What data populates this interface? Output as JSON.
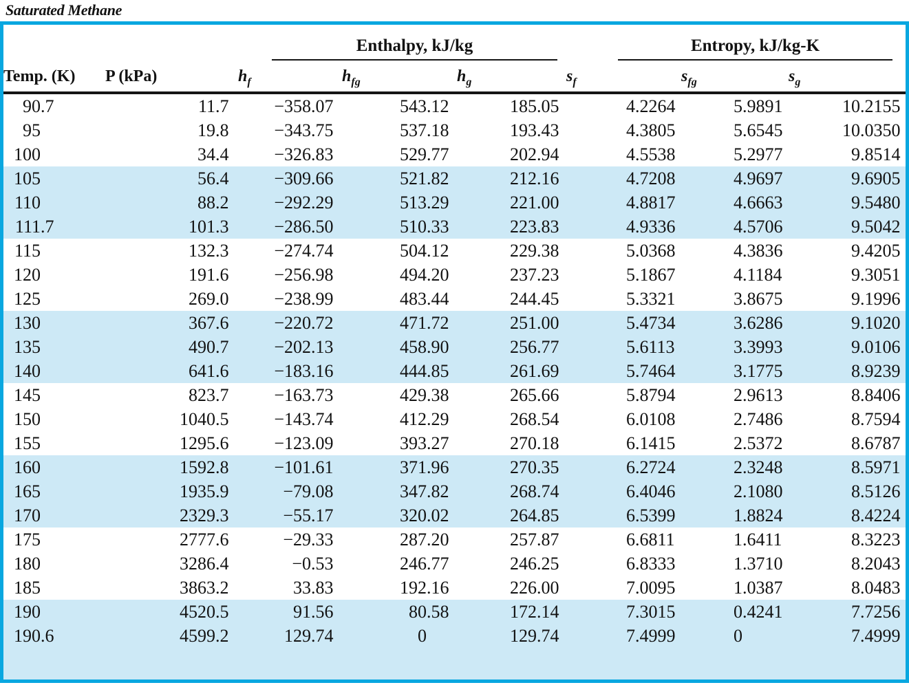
{
  "title": "Saturated Methane",
  "colors": {
    "table_border": "#09A7E0",
    "highlight_band": "#CDE9F6",
    "header_line": "#151515",
    "text": "#121212"
  },
  "table": {
    "group_headers": [
      {
        "id": "enthalpy",
        "label": "Enthalpy, kJ/kg",
        "span": 3
      },
      {
        "id": "entropy",
        "label": "Entropy, kJ/kg-K",
        "span": 3
      }
    ],
    "columns": [
      {
        "id": "temp",
        "label": "Temp. (K)"
      },
      {
        "id": "p",
        "label": "P (kPa)"
      },
      {
        "id": "hf",
        "main": "h",
        "sub": "f"
      },
      {
        "id": "hfg",
        "main": "h",
        "sub": "fg"
      },
      {
        "id": "hg",
        "main": "h",
        "sub": "g"
      },
      {
        "id": "sf",
        "main": "s",
        "sub": "f"
      },
      {
        "id": "sfg",
        "main": "s",
        "sub": "fg"
      },
      {
        "id": "sg",
        "main": "s",
        "sub": "g"
      }
    ],
    "rows": [
      {
        "highlighted": false,
        "values": [
          "90.7",
          "11.7",
          "−358.07",
          "543.12",
          "185.05",
          "4.2264",
          "5.9891",
          "10.2155"
        ]
      },
      {
        "highlighted": false,
        "values": [
          "95",
          "19.8",
          "−343.75",
          "537.18",
          "193.43",
          "4.3805",
          "5.6545",
          "10.0350"
        ]
      },
      {
        "highlighted": false,
        "values": [
          "100",
          "34.4",
          "−326.83",
          "529.77",
          "202.94",
          "4.5538",
          "5.2977",
          "9.8514"
        ]
      },
      {
        "highlighted": true,
        "values": [
          "105",
          "56.4",
          "−309.66",
          "521.82",
          "212.16",
          "4.7208",
          "4.9697",
          "9.6905"
        ]
      },
      {
        "highlighted": true,
        "values": [
          "110",
          "88.2",
          "−292.29",
          "513.29",
          "221.00",
          "4.8817",
          "4.6663",
          "9.5480"
        ]
      },
      {
        "highlighted": true,
        "values": [
          "111.7",
          "101.3",
          "−286.50",
          "510.33",
          "223.83",
          "4.9336",
          "4.5706",
          "9.5042"
        ]
      },
      {
        "highlighted": false,
        "values": [
          "115",
          "132.3",
          "−274.74",
          "504.12",
          "229.38",
          "5.0368",
          "4.3836",
          "9.4205"
        ]
      },
      {
        "highlighted": false,
        "values": [
          "120",
          "191.6",
          "−256.98",
          "494.20",
          "237.23",
          "5.1867",
          "4.1184",
          "9.3051"
        ]
      },
      {
        "highlighted": false,
        "values": [
          "125",
          "269.0",
          "−238.99",
          "483.44",
          "244.45",
          "5.3321",
          "3.8675",
          "9.1996"
        ]
      },
      {
        "highlighted": true,
        "values": [
          "130",
          "367.6",
          "−220.72",
          "471.72",
          "251.00",
          "5.4734",
          "3.6286",
          "9.1020"
        ]
      },
      {
        "highlighted": true,
        "values": [
          "135",
          "490.7",
          "−202.13",
          "458.90",
          "256.77",
          "5.6113",
          "3.3993",
          "9.0106"
        ]
      },
      {
        "highlighted": true,
        "values": [
          "140",
          "641.6",
          "−183.16",
          "444.85",
          "261.69",
          "5.7464",
          "3.1775",
          "8.9239"
        ]
      },
      {
        "highlighted": false,
        "values": [
          "145",
          "823.7",
          "−163.73",
          "429.38",
          "265.66",
          "5.8794",
          "2.9613",
          "8.8406"
        ]
      },
      {
        "highlighted": false,
        "values": [
          "150",
          "1040.5",
          "−143.74",
          "412.29",
          "268.54",
          "6.0108",
          "2.7486",
          "8.7594"
        ]
      },
      {
        "highlighted": false,
        "values": [
          "155",
          "1295.6",
          "−123.09",
          "393.27",
          "270.18",
          "6.1415",
          "2.5372",
          "8.6787"
        ]
      },
      {
        "highlighted": true,
        "values": [
          "160",
          "1592.8",
          "−101.61",
          "371.96",
          "270.35",
          "6.2724",
          "2.3248",
          "8.5971"
        ]
      },
      {
        "highlighted": true,
        "values": [
          "165",
          "1935.9",
          "−79.08",
          "347.82",
          "268.74",
          "6.4046",
          "2.1080",
          "8.5126"
        ]
      },
      {
        "highlighted": true,
        "values": [
          "170",
          "2329.3",
          "−55.17",
          "320.02",
          "264.85",
          "6.5399",
          "1.8824",
          "8.4224"
        ]
      },
      {
        "highlighted": false,
        "values": [
          "175",
          "2777.6",
          "−29.33",
          "287.20",
          "257.87",
          "6.6811",
          "1.6411",
          "8.3223"
        ]
      },
      {
        "highlighted": false,
        "values": [
          "180",
          "3286.4",
          "−0.53",
          "246.77",
          "246.25",
          "6.8333",
          "1.3710",
          "8.2043"
        ]
      },
      {
        "highlighted": false,
        "values": [
          "185",
          "3863.2",
          "33.83",
          "192.16",
          "226.00",
          "7.0095",
          "1.0387",
          "8.0483"
        ]
      },
      {
        "highlighted": true,
        "values": [
          "190",
          "4520.5",
          "91.56",
          "80.58",
          "172.14",
          "7.3015",
          "0.4241",
          "7.7256"
        ]
      },
      {
        "highlighted": true,
        "values": [
          "190.6",
          "4599.2",
          "129.74",
          "0",
          "129.74",
          "7.4999",
          "0",
          "7.4999"
        ]
      }
    ]
  }
}
